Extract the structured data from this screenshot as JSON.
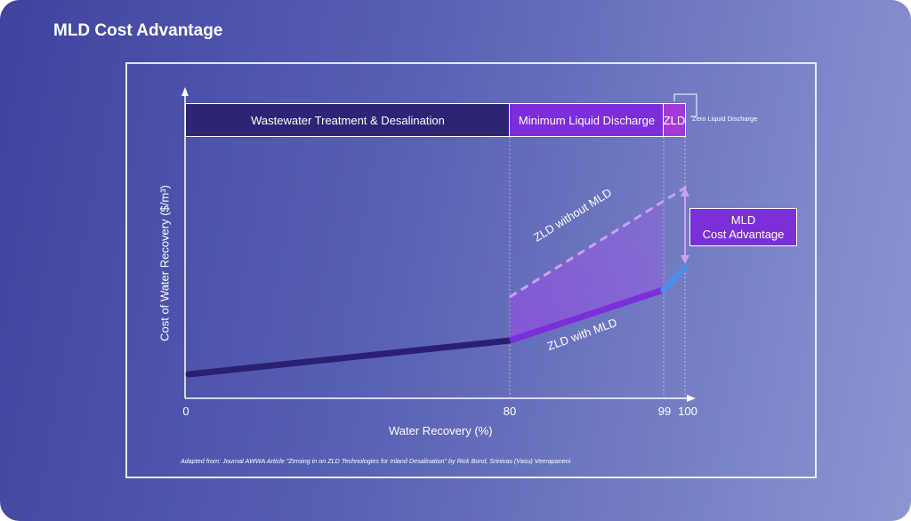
{
  "page": {
    "title": "MLD Cost Advantage"
  },
  "bands": [
    {
      "label": "Wastewater Treatment & Desalination",
      "color": "#2e2476"
    },
    {
      "label": "Minimum Liquid Discharge",
      "color": "#7b2ed9"
    },
    {
      "label": "ZLD",
      "color": "#a43ad6"
    }
  ],
  "zld_note": "Zero Liquid Discharge",
  "axes": {
    "xlabel": "Water Recovery (%)",
    "ylabel": "Cost of Water Recovery ($/m³)",
    "x_ticks": [
      "0",
      "80",
      "99",
      "100"
    ]
  },
  "curves": {
    "zld_without_mld": "ZLD without MLD",
    "zld_with_mld": "ZLD with MLD"
  },
  "advantage": {
    "line1": "MLD",
    "line2": "Cost Advantage"
  },
  "footnote": "Adapted from:  Journal AWWA Article \"Zeroing in on ZLD Technologies for Inland Desalination\" by Rick Bond, Srinivas (Vasu) Veerapaneni",
  "colors": {
    "curve_base": "#2a1f72",
    "curve_mld": "#7b2ed9",
    "curve_zld": "#4f8ee6",
    "dashed": "#c9a2f0"
  }
}
